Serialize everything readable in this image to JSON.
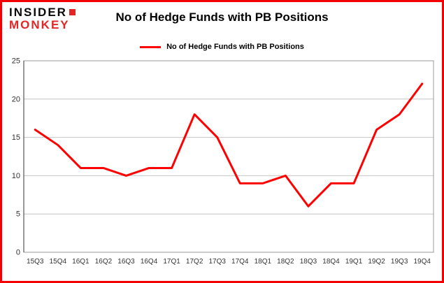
{
  "header": {
    "logo_line1": "INSIDER",
    "logo_line2": "MONKEY",
    "title": "No of Hedge Funds with PB Positions"
  },
  "legend": {
    "label": "No of Hedge Funds with PB Positions"
  },
  "colors": {
    "frame_border": "#f40000",
    "series_line": "#ff0000",
    "grid_line": "#c6c6c6",
    "axis_text": "#333333"
  },
  "chart_data": {
    "type": "line",
    "title": "No of Hedge Funds with PB Positions",
    "categories": [
      "15Q3",
      "15Q4",
      "16Q1",
      "16Q2",
      "16Q3",
      "16Q4",
      "17Q1",
      "17Q2",
      "17Q3",
      "17Q4",
      "18Q1",
      "18Q2",
      "18Q3",
      "18Q4",
      "19Q1",
      "19Q2",
      "19Q3",
      "19Q4"
    ],
    "values": [
      16,
      14,
      11,
      11,
      10,
      11,
      11,
      18,
      15,
      9,
      9,
      10,
      6,
      9,
      9,
      16,
      18,
      22
    ],
    "xlabel": "",
    "ylabel": "",
    "ylim": [
      0,
      25
    ],
    "ytick_step": 5,
    "grid": true,
    "legend_position": "top",
    "line_color": "#ff0000"
  }
}
